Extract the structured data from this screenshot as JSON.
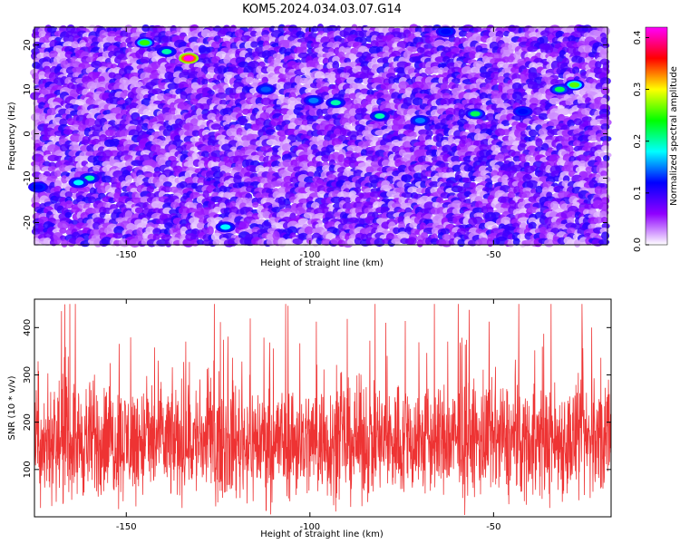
{
  "title": "KOM5.2024.034.03.07.G14",
  "chart_data": [
    {
      "type": "heatmap",
      "xlabel": "Height of straight line (km)",
      "ylabel": "Frequency (Hz)",
      "xlim": [
        -175,
        -19
      ],
      "ylim": [
        -25,
        24
      ],
      "xticks": [
        -150,
        -100,
        -50
      ],
      "yticks": [
        -20,
        -10,
        0,
        10,
        20
      ],
      "colorbar": {
        "label": "Normalized spectral amplitude",
        "range": [
          0.0,
          0.42
        ],
        "ticks": [
          "0.0",
          "0.1",
          "0.2",
          "0.3",
          "0.4"
        ],
        "colors": [
          "#ffffff",
          "#8f00ff",
          "#0000ff",
          "#00ffff",
          "#00ff00",
          "#ffff00",
          "#ff0000",
          "#ff00ff"
        ]
      },
      "peaks": [
        {
          "x": -133,
          "y": 17,
          "value": 0.42
        },
        {
          "x": -145,
          "y": 20.5,
          "value": 0.25
        },
        {
          "x": -139,
          "y": 18.5,
          "value": 0.2
        },
        {
          "x": -28,
          "y": 11,
          "value": 0.26
        },
        {
          "x": -32,
          "y": 10,
          "value": 0.22
        },
        {
          "x": -55,
          "y": 4.5,
          "value": 0.22
        },
        {
          "x": -81,
          "y": 4,
          "value": 0.2
        },
        {
          "x": -93,
          "y": 7,
          "value": 0.2
        },
        {
          "x": -160,
          "y": -10,
          "value": 0.2
        },
        {
          "x": -163,
          "y": -11,
          "value": 0.18
        },
        {
          "x": -123,
          "y": -21,
          "value": 0.18
        },
        {
          "x": -70,
          "y": 3,
          "value": 0.15
        },
        {
          "x": -99,
          "y": 7.5,
          "value": 0.15
        },
        {
          "x": -112,
          "y": 10,
          "value": 0.14
        },
        {
          "x": -174,
          "y": -12,
          "value": 0.12
        },
        {
          "x": -42,
          "y": 5,
          "value": 0.12
        },
        {
          "x": -63,
          "y": 23,
          "value": 0.12
        }
      ],
      "background_level": [
        0.0,
        0.1
      ]
    },
    {
      "type": "line",
      "xlabel": "Height of straight line (km)",
      "ylabel": "SNR (10 * v/v)",
      "xlim": [
        -175,
        -18
      ],
      "ylim": [
        0,
        460
      ],
      "xticks": [
        -150,
        -100,
        -50
      ],
      "yticks": [
        100,
        200,
        300,
        400
      ],
      "series": [
        {
          "color": "#ee3333",
          "mean": 160,
          "min": 0,
          "max": 450
        }
      ]
    }
  ]
}
